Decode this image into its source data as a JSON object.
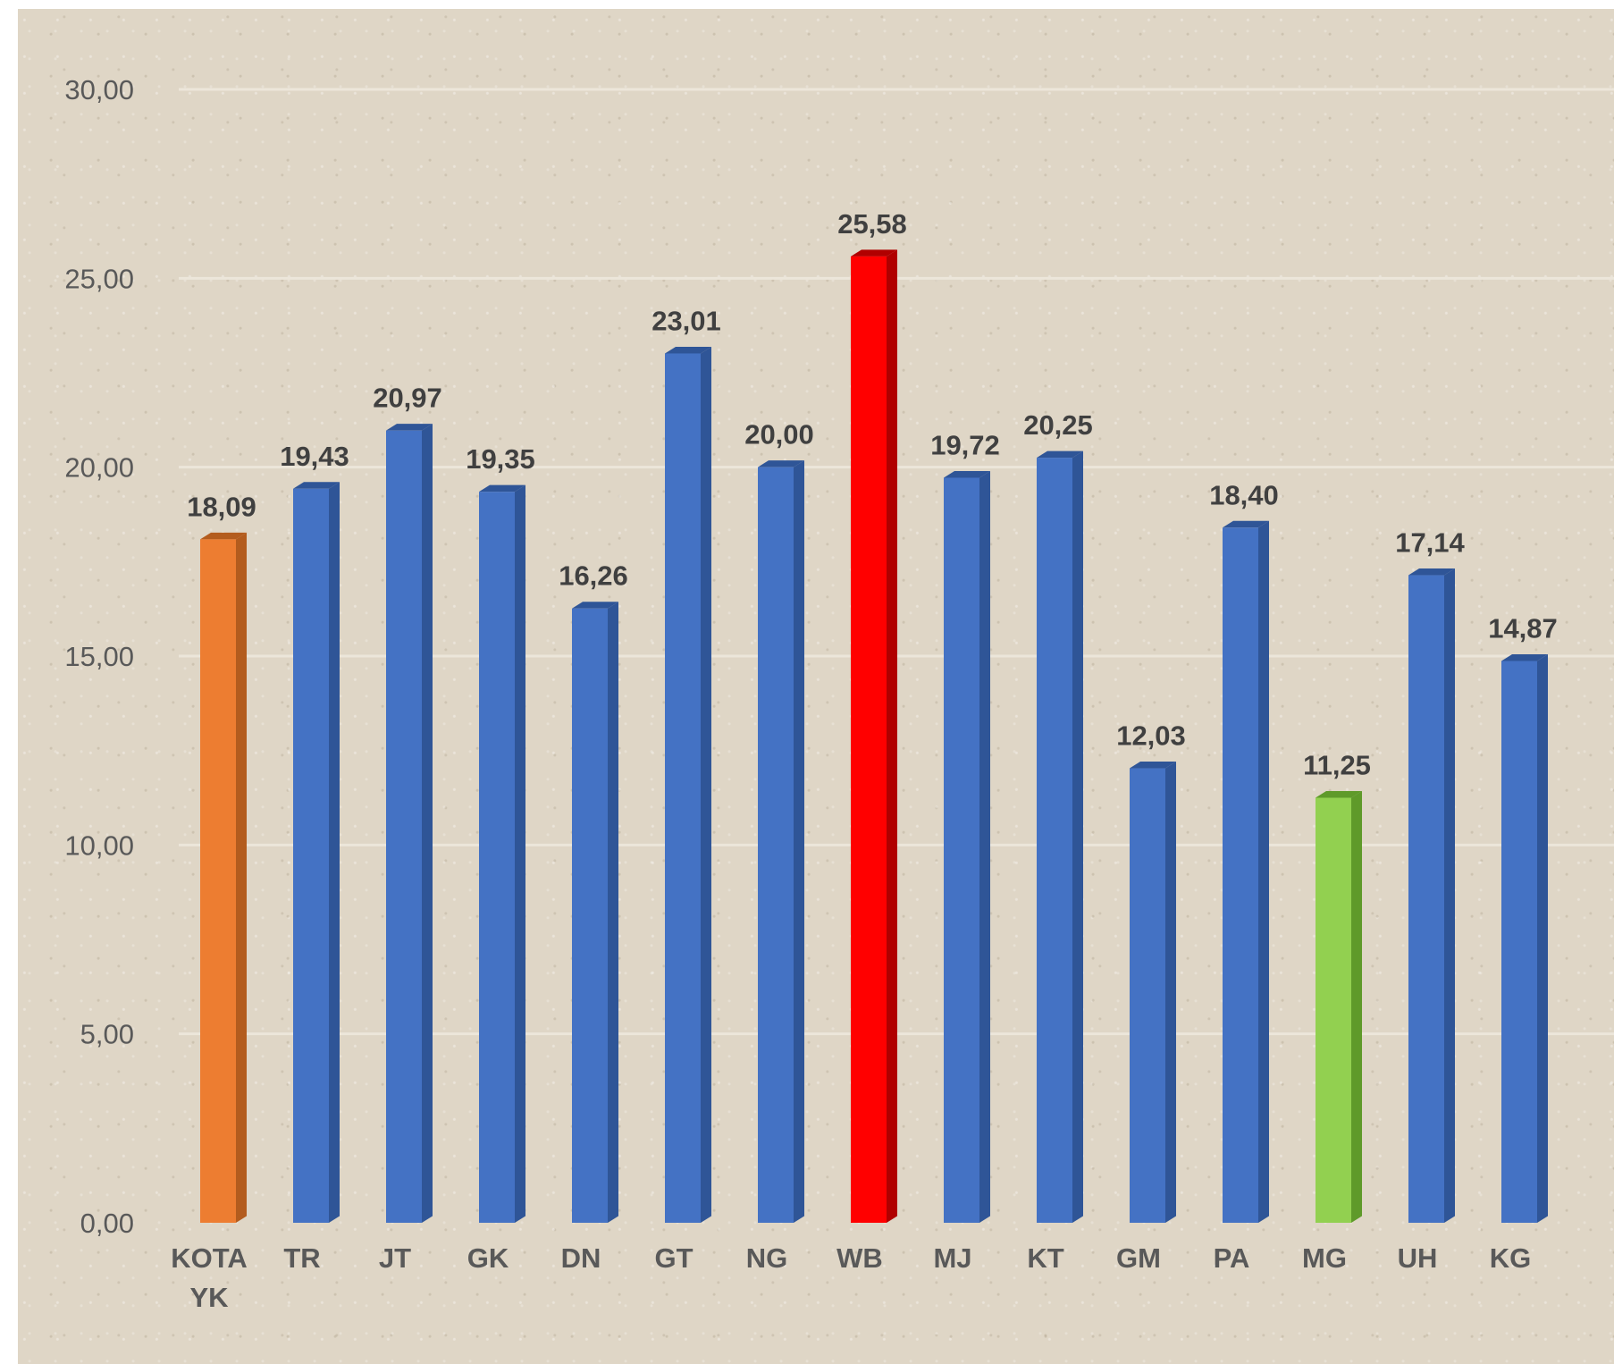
{
  "chart_data": {
    "type": "bar",
    "categories": [
      [
        "KOTA",
        "YK"
      ],
      [
        "TR"
      ],
      [
        "JT"
      ],
      [
        "GK"
      ],
      [
        "DN"
      ],
      [
        "GT"
      ],
      [
        "NG"
      ],
      [
        "WB"
      ],
      [
        "MJ"
      ],
      [
        "KT"
      ],
      [
        "GM"
      ],
      [
        "PA"
      ],
      [
        "MG"
      ],
      [
        "UH"
      ],
      [
        "KG"
      ]
    ],
    "values": [
      18.09,
      19.43,
      20.97,
      19.35,
      16.26,
      23.01,
      20.0,
      25.58,
      19.72,
      20.25,
      12.03,
      18.4,
      11.25,
      17.14,
      14.87
    ],
    "value_labels": [
      "18,09",
      "19,43",
      "20,97",
      "19,35",
      "16,26",
      "23,01",
      "20,00",
      "25,58",
      "19,72",
      "20,25",
      "12,03",
      "18,40",
      "11,25",
      "17,14",
      "14,87"
    ],
    "bar_colors": [
      "#ed7d31",
      "#4472c4",
      "#4472c4",
      "#4472c4",
      "#4472c4",
      "#4472c4",
      "#4472c4",
      "#ff0000",
      "#4472c4",
      "#4472c4",
      "#4472c4",
      "#4472c4",
      "#92d050",
      "#4472c4",
      "#4472c4"
    ],
    "bar_side_colors": [
      "#b35c1e",
      "#2f5597",
      "#2f5597",
      "#2f5597",
      "#2f5597",
      "#2f5597",
      "#2f5597",
      "#b00000",
      "#2f5597",
      "#2f5597",
      "#2f5597",
      "#2f5597",
      "#5f9a2a",
      "#2f5597",
      "#2f5597"
    ],
    "y_ticks": [
      0,
      5,
      10,
      15,
      20,
      25,
      30
    ],
    "y_tick_labels": [
      "0,00",
      "5,00",
      "10,00",
      "15,00",
      "20,00",
      "25,00",
      "30,00"
    ],
    "ylim": [
      0,
      30
    ],
    "grid": true,
    "legend": false,
    "style": "3d-column"
  }
}
